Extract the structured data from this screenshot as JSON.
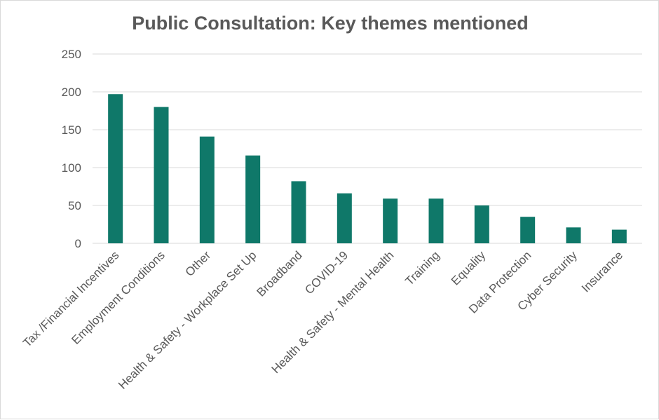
{
  "chart_data": {
    "type": "bar",
    "title": "Public Consultation: Key themes mentioned",
    "xlabel": "",
    "ylabel": "",
    "categories": [
      "Tax /Financial Incentives",
      "Employment Conditions",
      "Other",
      "Health & Safety - Workplace Set Up",
      "Broadband",
      "COVID-19",
      "Health & Safety - Mental Health",
      "Training",
      "Equality",
      "Data Protection",
      "Cyber Security",
      "Insurance"
    ],
    "values": [
      197,
      180,
      141,
      116,
      82,
      66,
      59,
      59,
      50,
      35,
      21,
      18
    ],
    "ylim": [
      0,
      250
    ],
    "yticks": [
      "0",
      "50",
      "100",
      "150",
      "200",
      "250"
    ],
    "grid": true,
    "legend": "none",
    "colors": {
      "bar": "#0f7869",
      "grid": "#d9d9d9",
      "text": "#595959"
    }
  }
}
